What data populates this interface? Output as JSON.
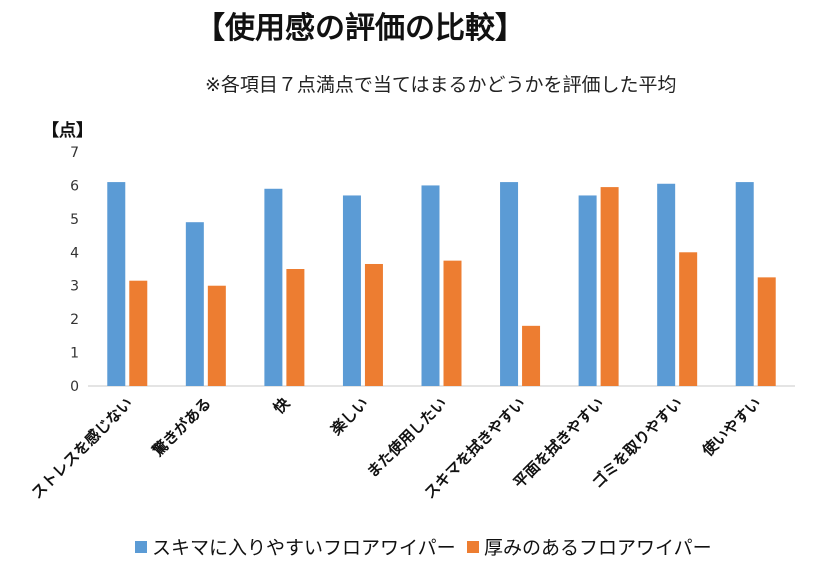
{
  "chart_data": {
    "type": "bar",
    "title": "【使用感の評価の比較】",
    "subtitle": "※各項目７点満点で当てはまるかどうかを評価した平均",
    "ylabel": "【点】",
    "xlabel": "",
    "ylim": [
      0,
      7
    ],
    "yticks": [
      0,
      1,
      2,
      3,
      4,
      5,
      6,
      7
    ],
    "grid": false,
    "legend_position": "bottom",
    "categories": [
      "ストレスを感じない",
      "驚きがある",
      "快",
      "楽しい",
      "また使用したい",
      "スキマを拭きやすい",
      "平面を拭きやすい",
      "ゴミを取りやすい",
      "使いやすい"
    ],
    "series": [
      {
        "name": "スキマに入りやすいフロアワイパー",
        "color": "#5B9BD5",
        "values": [
          6.1,
          4.9,
          5.9,
          5.7,
          6.0,
          6.1,
          5.7,
          6.05,
          6.1
        ]
      },
      {
        "name": "厚みのあるフロアワイパー",
        "color": "#ED7D31",
        "values": [
          3.15,
          3.0,
          3.5,
          3.65,
          3.75,
          1.8,
          5.95,
          4.0,
          3.25
        ]
      }
    ]
  }
}
